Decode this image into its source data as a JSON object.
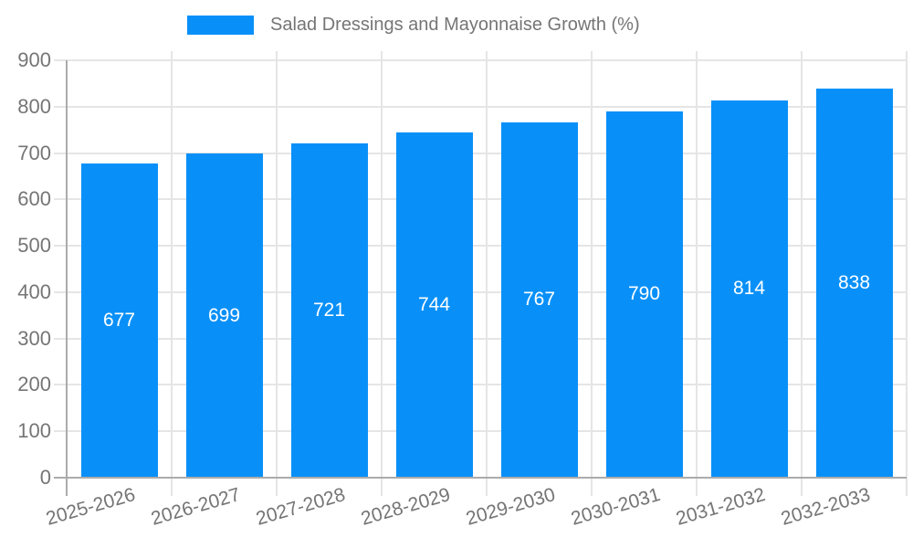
{
  "legend": {
    "label": "Salad Dressings and Mayonnaise Growth (%)",
    "swatch_color": "#0990f8"
  },
  "chart_data": {
    "type": "bar",
    "title": "Salad Dressings and Mayonnaise Growth (%)",
    "categories": [
      "2025-2026",
      "2026-2027",
      "2027-2028",
      "2028-2029",
      "2029-2030",
      "2030-2031",
      "2031-2032",
      "2032-2033"
    ],
    "values": [
      677,
      699,
      721,
      744,
      767,
      790,
      814,
      838
    ],
    "xlabel": "",
    "ylabel": "",
    "ylim": [
      0,
      900
    ],
    "y_ticks": [
      0,
      100,
      200,
      300,
      400,
      500,
      600,
      700,
      800,
      900
    ],
    "grid": true,
    "legend_position": "top",
    "bar_color": "#0990f8",
    "value_label_color": "#ffffff",
    "axis_text_color": "#757575",
    "gridline_color": "#e5e5e5",
    "axis_line_color": "#ababab"
  }
}
